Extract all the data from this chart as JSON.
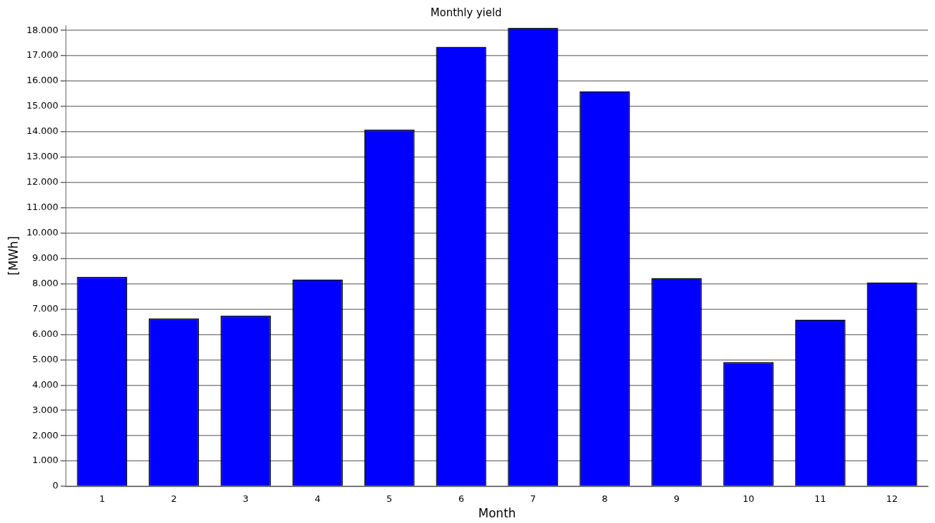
{
  "chart_data": {
    "type": "bar",
    "title": "Monthly yield",
    "xlabel": "Month",
    "ylabel": "[MWh]",
    "categories": [
      "1",
      "2",
      "3",
      "4",
      "5",
      "6",
      "7",
      "8",
      "9",
      "10",
      "11",
      "12"
    ],
    "series": [
      {
        "color": "#0000ff",
        "values": [
          8270,
          6630,
          6740,
          8170,
          14080,
          17350,
          18100,
          15600,
          8220,
          4900,
          6580,
          8050
        ]
      }
    ],
    "ylim": [
      0,
      18200
    ],
    "yticks": [
      {
        "value": 0,
        "label": "0"
      },
      {
        "value": 1000,
        "label": "1.000"
      },
      {
        "value": 2000,
        "label": "2.000"
      },
      {
        "value": 3000,
        "label": "3.000"
      },
      {
        "value": 4000,
        "label": "4.000"
      },
      {
        "value": 5000,
        "label": "5.000"
      },
      {
        "value": 6000,
        "label": "6.000"
      },
      {
        "value": 7000,
        "label": "7.000"
      },
      {
        "value": 8000,
        "label": "8.000"
      },
      {
        "value": 9000,
        "label": "9.000"
      },
      {
        "value": 10000,
        "label": "10.000"
      },
      {
        "value": 11000,
        "label": "11.000"
      },
      {
        "value": 12000,
        "label": "12.000"
      },
      {
        "value": 13000,
        "label": "13.000"
      },
      {
        "value": 14000,
        "label": "14.000"
      },
      {
        "value": 15000,
        "label": "15.000"
      },
      {
        "value": 16000,
        "label": "16.000"
      },
      {
        "value": 17000,
        "label": "17.000"
      },
      {
        "value": 18000,
        "label": "18.000"
      }
    ],
    "grid": "y",
    "legend": false
  }
}
